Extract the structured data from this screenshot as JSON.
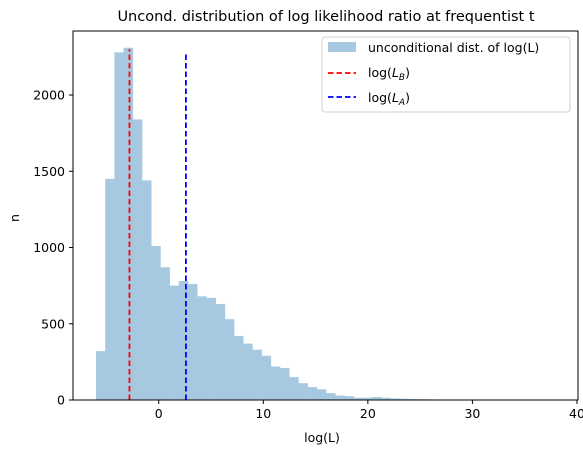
{
  "chart_data": {
    "type": "histogram",
    "title": "Uncond. distribution of log likelihood ratio at frequentist  t",
    "xlabel": "log(L)",
    "ylabel": "n",
    "xlim": [
      -8.2,
      40.1
    ],
    "ylim": [
      0,
      2420
    ],
    "xticks": [
      0,
      10,
      20,
      30,
      40
    ],
    "yticks": [
      0,
      500,
      1000,
      1500,
      2000
    ],
    "grid": false,
    "legend_position": "top-right",
    "bar_color": "#a6c8e0",
    "bins": {
      "start": -6.0,
      "width": 0.88,
      "counts": [
        320,
        1450,
        2280,
        2310,
        1840,
        1440,
        1010,
        870,
        750,
        780,
        760,
        680,
        670,
        630,
        530,
        420,
        370,
        330,
        290,
        220,
        210,
        150,
        110,
        85,
        70,
        45,
        30,
        25,
        15,
        15,
        20,
        15,
        10,
        8,
        6,
        5,
        4,
        3,
        3,
        2,
        2,
        1,
        1,
        0,
        0,
        0,
        0,
        0,
        0,
        0,
        0
      ]
    },
    "series": [
      {
        "name": "unconditional dist. of log(L)",
        "kind": "histogram",
        "color": "#a6c8e0"
      },
      {
        "name": "log(L_B)",
        "kind": "vline",
        "x": -2.8,
        "ymax": 2300,
        "color": "#ff0000",
        "style": "dashed"
      },
      {
        "name": "log(L_A)",
        "kind": "vline",
        "x": 2.6,
        "ymax": 2280,
        "color": "#0000ff",
        "style": "dashed"
      }
    ],
    "legend": [
      {
        "label": "unconditional dist. of log(L)",
        "marker": "patch",
        "color": "#a6c8e0"
      },
      {
        "label_main": "log(",
        "label_var": "L",
        "label_sub": "B",
        "label_close": ")",
        "marker": "dashed",
        "color": "#ff0000"
      },
      {
        "label_main": "log(",
        "label_var": "L",
        "label_sub": "A",
        "label_close": ")",
        "marker": "dashed",
        "color": "#0000ff"
      }
    ]
  }
}
